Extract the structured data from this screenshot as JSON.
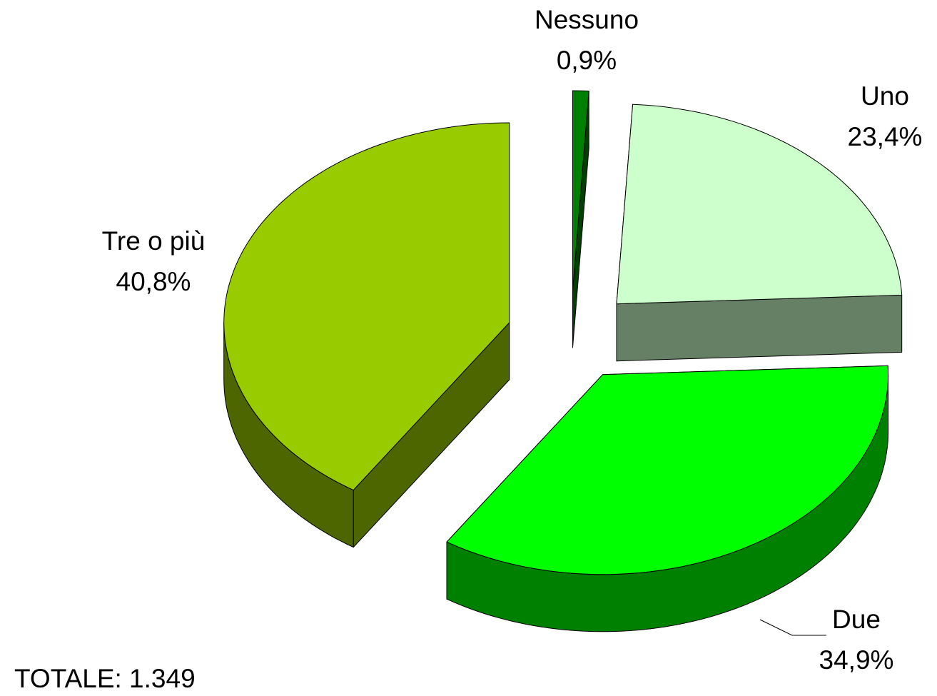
{
  "chart_data": {
    "type": "pie",
    "categories": [
      "Nessuno",
      "Uno",
      "Due",
      "Tre o più"
    ],
    "values": [
      0.9,
      23.4,
      34.9,
      40.8
    ],
    "value_labels": [
      "0,9%",
      "23,4%",
      "34,9%",
      "40,8%"
    ],
    "colors": [
      "#008000",
      "#ccffcc",
      "#00ff00",
      "#99cc00"
    ],
    "annotation": "TOTALE: 1.349"
  }
}
